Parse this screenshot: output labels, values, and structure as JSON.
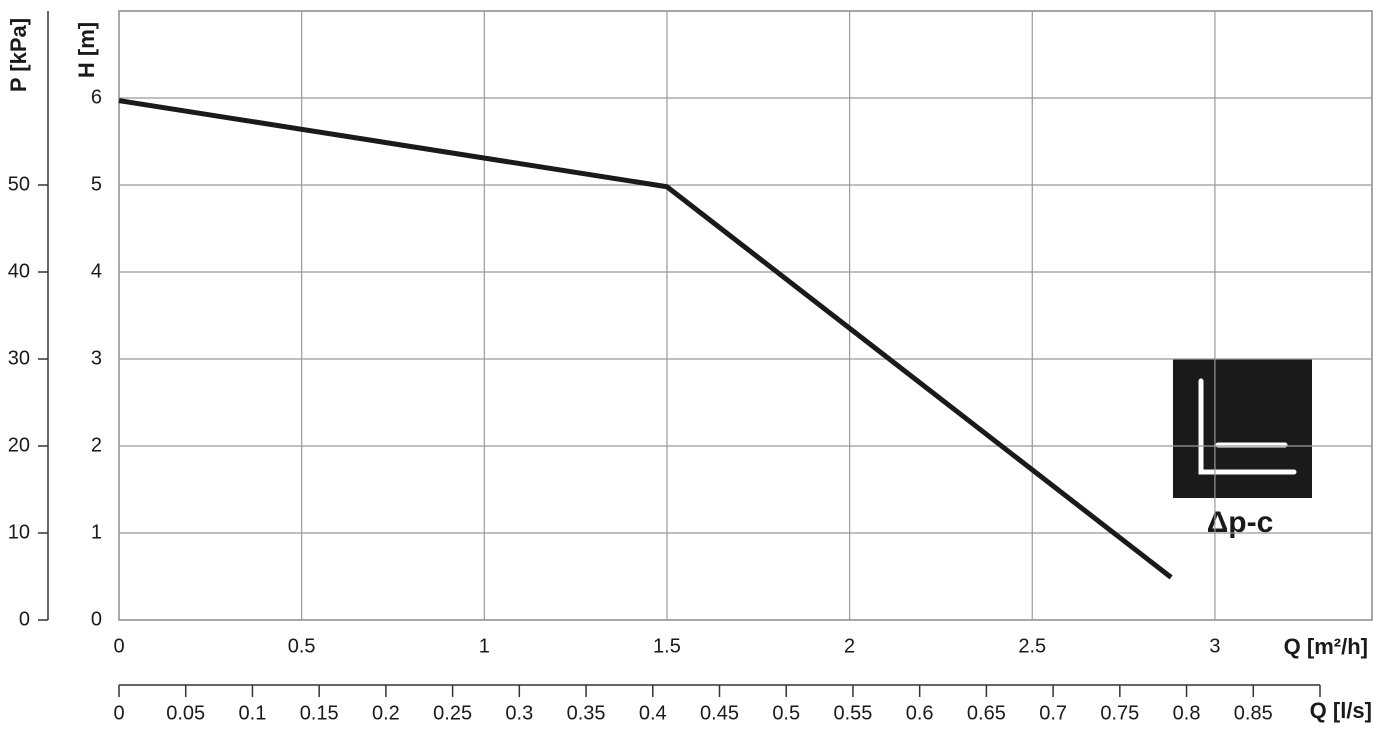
{
  "chart_data": {
    "type": "line",
    "x": [
      0,
      1.5,
      2.88
    ],
    "series": [
      {
        "name": "Δp-c",
        "color": "#1a1a1a",
        "values": [
          5.97,
          4.98,
          0.49
        ]
      }
    ],
    "xlim": [
      0,
      3.43
    ],
    "xticks": [
      0,
      0.5,
      1,
      1.5,
      2,
      2.5,
      3
    ],
    "xlabel": "Q [m²/h]",
    "ylim": [
      0,
      7
    ],
    "yticks": [
      0,
      1,
      2,
      3,
      4,
      5,
      6
    ],
    "ylabel": "H [m]",
    "y2lim": [
      0,
      70
    ],
    "y2ticks": [
      0,
      10,
      20,
      30,
      40,
      50
    ],
    "y2label": "P [kPa]",
    "x2lim": [
      0,
      0.9
    ],
    "x2ticks": [
      0,
      0.05,
      0.1,
      0.15,
      0.2,
      0.25,
      0.3,
      0.35,
      0.4,
      0.45,
      0.5,
      0.55,
      0.6,
      0.65,
      0.7,
      0.75,
      0.8,
      0.85
    ],
    "x2label": "Q [l/s]",
    "grid": true
  }
}
